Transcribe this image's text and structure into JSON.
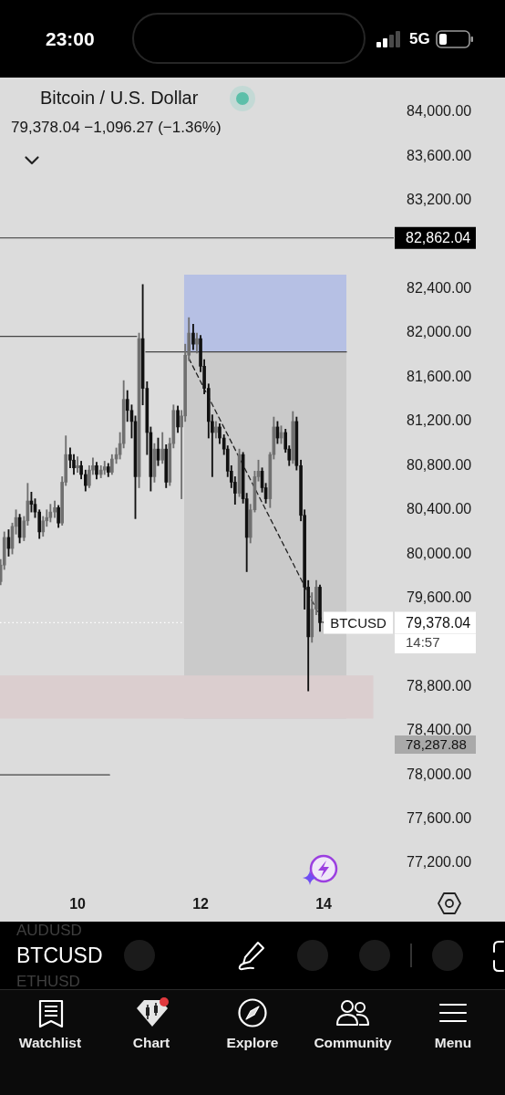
{
  "chart_data": {
    "type": "candlestick",
    "title": "Bitcoin / U.S. Dollar",
    "subtitle": "79,378.04 −1,096.27 (−1.36%)",
    "x": [
      8.75,
      8.81,
      8.88,
      8.94,
      9,
      9.06,
      9.13,
      9.19,
      9.25,
      9.31,
      9.38,
      9.44,
      9.5,
      9.56,
      9.63,
      9.69,
      9.75,
      9.81,
      9.88,
      9.94,
      10,
      10.06,
      10.13,
      10.19,
      10.25,
      10.31,
      10.38,
      10.44,
      10.5,
      10.56,
      10.63,
      10.69,
      10.75,
      10.81,
      10.88,
      10.94,
      11,
      11.06,
      11.13,
      11.19,
      11.25,
      11.31,
      11.38,
      11.44,
      11.5,
      11.56,
      11.63,
      11.69,
      11.75,
      11.81,
      11.88,
      11.94,
      12,
      12.06,
      12.13,
      12.19,
      12.25,
      12.31,
      12.38,
      12.44,
      12.5,
      12.56,
      12.63,
      12.69,
      12.75,
      12.81,
      12.88,
      12.94,
      13,
      13.06,
      13.13,
      13.19,
      13.25,
      13.31,
      13.38,
      13.44,
      13.5,
      13.56,
      13.63,
      13.69,
      13.75,
      13.81,
      13.88,
      13.94
    ],
    "ohlc": [
      [
        79750,
        79950,
        79720,
        79900
      ],
      [
        79900,
        80200,
        79860,
        80150
      ],
      [
        80150,
        80220,
        79980,
        80050
      ],
      [
        80050,
        80280,
        80000,
        80250
      ],
      [
        80250,
        80400,
        80180,
        80330
      ],
      [
        80330,
        80360,
        80100,
        80150
      ],
      [
        80150,
        80340,
        80120,
        80300
      ],
      [
        80300,
        80640,
        80260,
        80480
      ],
      [
        80480,
        80560,
        80380,
        80450
      ],
      [
        80450,
        80500,
        80330,
        80380
      ],
      [
        80380,
        80400,
        80140,
        80200
      ],
      [
        80200,
        80340,
        80160,
        80300
      ],
      [
        80300,
        80400,
        80250,
        80330
      ],
      [
        80330,
        80450,
        80290,
        80380
      ],
      [
        80380,
        80480,
        80330,
        80420
      ],
      [
        80420,
        80440,
        80240,
        80280
      ],
      [
        80280,
        80700,
        80260,
        80650
      ],
      [
        80650,
        81070,
        80620,
        80900
      ],
      [
        80900,
        80960,
        80780,
        80850
      ],
      [
        80850,
        80900,
        80720,
        80780
      ],
      [
        80780,
        80880,
        80740,
        80800
      ],
      [
        80800,
        80840,
        80680,
        80720
      ],
      [
        80720,
        80760,
        80570,
        80620
      ],
      [
        80620,
        80800,
        80600,
        80760
      ],
      [
        80760,
        80870,
        80720,
        80800
      ],
      [
        80800,
        80830,
        80680,
        80720
      ],
      [
        80720,
        80800,
        80690,
        80760
      ],
      [
        80760,
        80840,
        80720,
        80790
      ],
      [
        80790,
        80820,
        80700,
        80740
      ],
      [
        80740,
        80900,
        80720,
        80860
      ],
      [
        80860,
        80960,
        80820,
        80900
      ],
      [
        80900,
        81100,
        80860,
        81000
      ],
      [
        81000,
        81570,
        80960,
        81400
      ],
      [
        81400,
        81480,
        81200,
        81300
      ],
      [
        81300,
        81350,
        81050,
        81200
      ],
      [
        81200,
        81250,
        80320,
        80700
      ],
      [
        80700,
        82000,
        80600,
        81950
      ],
      [
        81950,
        82440,
        81350,
        81500
      ],
      [
        81500,
        81560,
        80900,
        81100
      ],
      [
        81100,
        81150,
        80570,
        80700
      ],
      [
        80700,
        81000,
        80650,
        80950
      ],
      [
        80950,
        81050,
        80800,
        80850
      ],
      [
        80850,
        81100,
        80820,
        80950
      ],
      [
        80950,
        80990,
        80600,
        80650
      ],
      [
        80650,
        81050,
        80620,
        81000
      ],
      [
        81000,
        81350,
        80960,
        81300
      ],
      [
        81300,
        81340,
        81100,
        81150
      ],
      [
        81150,
        81300,
        80500,
        81250
      ],
      [
        81250,
        81900,
        81200,
        81800
      ],
      [
        81800,
        82140,
        81750,
        82000
      ],
      [
        82000,
        82080,
        81850,
        81900
      ],
      [
        81900,
        82000,
        81820,
        81950
      ],
      [
        81950,
        81980,
        81650,
        81700
      ],
      [
        81700,
        81760,
        81450,
        81500
      ],
      [
        81500,
        81540,
        81050,
        81200
      ],
      [
        81200,
        81260,
        80700,
        81100
      ],
      [
        81100,
        81200,
        81050,
        81150
      ],
      [
        81150,
        81180,
        81000,
        81050
      ],
      [
        81050,
        81080,
        80900,
        80950
      ],
      [
        80950,
        80980,
        80700,
        80750
      ],
      [
        80750,
        80800,
        80600,
        80650
      ],
      [
        80650,
        80700,
        80450,
        80550
      ],
      [
        80550,
        80950,
        80520,
        80900
      ],
      [
        80900,
        80920,
        80460,
        80500
      ],
      [
        80500,
        80550,
        79840,
        80150
      ],
      [
        80150,
        80450,
        80100,
        80400
      ],
      [
        80400,
        80750,
        80380,
        80700
      ],
      [
        80700,
        80850,
        80660,
        80750
      ],
      [
        80750,
        80780,
        80560,
        80600
      ],
      [
        80600,
        80640,
        80460,
        80500
      ],
      [
        80500,
        80920,
        80420,
        80900
      ],
      [
        80900,
        81240,
        80860,
        81150
      ],
      [
        81150,
        81200,
        81000,
        81050
      ],
      [
        81050,
        81160,
        81000,
        81100
      ],
      [
        81100,
        81130,
        80920,
        80950
      ],
      [
        80950,
        80980,
        80800,
        80850
      ],
      [
        80850,
        81290,
        80820,
        81200
      ],
      [
        81200,
        81240,
        80760,
        80800
      ],
      [
        80800,
        80850,
        80300,
        80350
      ],
      [
        80350,
        80400,
        79500,
        79700
      ],
      [
        79700,
        79760,
        78760,
        79250
      ],
      [
        79250,
        79650,
        79200,
        79500
      ],
      [
        79500,
        79760,
        79450,
        79700
      ],
      [
        79700,
        79720,
        79300,
        79378.04
      ]
    ],
    "colors": [
      "#707070",
      "#707070",
      "#111111",
      "#707070",
      "#707070",
      "#111111",
      "#707070",
      "#707070",
      "#111111",
      "#111111",
      "#111111",
      "#707070",
      "#707070",
      "#707070",
      "#707070",
      "#111111",
      "#707070",
      "#707070",
      "#111111",
      "#111111",
      "#707070",
      "#111111",
      "#111111",
      "#707070",
      "#707070",
      "#111111",
      "#707070",
      "#707070",
      "#111111",
      "#707070",
      "#707070",
      "#707070",
      "#707070",
      "#111111",
      "#111111",
      "#111111",
      "#707070",
      "#111111",
      "#111111",
      "#111111",
      "#707070",
      "#111111",
      "#707070",
      "#111111",
      "#707070",
      "#707070",
      "#111111",
      "#707070",
      "#707070",
      "#707070",
      "#111111",
      "#707070",
      "#111111",
      "#111111",
      "#111111",
      "#111111",
      "#707070",
      "#111111",
      "#111111",
      "#111111",
      "#111111",
      "#111111",
      "#707070",
      "#111111",
      "#111111",
      "#707070",
      "#707070",
      "#707070",
      "#111111",
      "#111111",
      "#707070",
      "#707070",
      "#111111",
      "#707070",
      "#111111",
      "#111111",
      "#707070",
      "#111111",
      "#111111",
      "#111111",
      "#111111",
      "#707070",
      "#707070",
      "#111111"
    ],
    "series": [
      {
        "type": "line",
        "x": [
          11.73,
          14.37
        ],
        "values": [
          null,
          null
        ],
        "lower": [
          81830,
          81830
        ],
        "upper": [
          82530,
          82530
        ],
        "color": "#b6c0e4"
      },
      {
        "type": "line",
        "x": [
          11.73,
          14.37
        ],
        "values": [
          null,
          null
        ],
        "lower": [
          78510,
          78510
        ],
        "upper": [
          81830,
          81830
        ],
        "color": "#cacaca"
      },
      {
        "type": "line",
        "x": [
          8.74,
          14.81
        ],
        "values": [
          null,
          null
        ],
        "lower": [
          78510,
          78510
        ],
        "upper": [
          78900,
          78900
        ],
        "color": "#dbcecf"
      },
      {
        "type": "line",
        "x": [
          8.74,
          10.96
        ],
        "values": [
          81970,
          81970
        ],
        "color": "#444444"
      },
      {
        "type": "line",
        "x": [
          11.11,
          14.37
        ],
        "values": [
          81830,
          81830
        ],
        "color": "#444444"
      },
      {
        "type": "line",
        "x": [
          8.74,
          10.52
        ],
        "values": [
          78000,
          78000
        ],
        "color": "#444444"
      },
      {
        "type": "line",
        "x": [
          11.81,
          13.99
        ],
        "values": [
          81770,
          79380
        ],
        "color": "#222222",
        "line_style": "dashed"
      }
    ],
    "xlim": [
      8.74,
      15.14
    ],
    "xticks": [
      10,
      12,
      14
    ],
    "ylim": [
      77200,
      84000
    ],
    "yticks": [
      {
        "value": 77200,
        "label": "77,200.00"
      },
      {
        "value": 77600,
        "label": "77,600.00"
      },
      {
        "value": 78000,
        "label": "78,000.00"
      },
      {
        "value": 78400,
        "label": "78,400.00"
      },
      {
        "value": 78800,
        "label": "78,800.00"
      },
      {
        "value": 79600,
        "label": "79,600.00"
      },
      {
        "value": 80000,
        "label": "80,000.00"
      },
      {
        "value": 80400,
        "label": "80,400.00"
      },
      {
        "value": 80800,
        "label": "80,800.00"
      },
      {
        "value": 81200,
        "label": "81,200.00"
      },
      {
        "value": 81600,
        "label": "81,600.00"
      },
      {
        "value": 82000,
        "label": "82,000.00"
      },
      {
        "value": 82400,
        "label": "82,400.00"
      },
      {
        "value": 83200,
        "label": "83,200.00"
      },
      {
        "value": 83600,
        "label": "83,600.00"
      },
      {
        "value": 84000,
        "label": "84,000.00"
      }
    ],
    "ref_lines": [
      {
        "axis": "y",
        "value": 82862.04,
        "label": "82,862.04",
        "color": "#333333"
      },
      {
        "axis": "y",
        "value": 79378.04,
        "label": "79,378.04",
        "color": "#ffffff",
        "line_style": "dotted"
      }
    ],
    "annotations": [
      "23:00",
      "5G",
      {
        "text": "BTCUSD",
        "y": 79378.04
      },
      "14:57",
      "78,287.88",
      "AUDUSD",
      "BTCUSD",
      "ETHUSD",
      "Watchlist",
      "Chart",
      "Explore",
      "Community",
      "Menu"
    ]
  }
}
